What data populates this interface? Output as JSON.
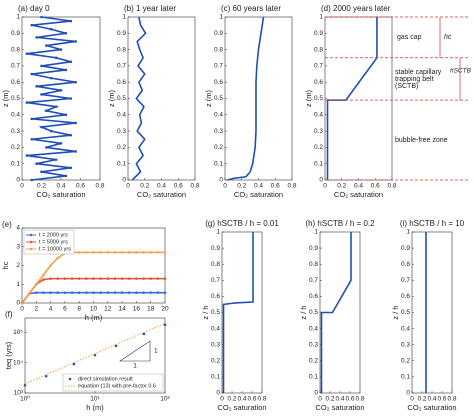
{
  "chart_data": [
    {
      "type": "line",
      "title": "(a) day 0",
      "xlabel": "CO₂ saturation",
      "ylabel": "z (m)",
      "xlim": [
        0,
        0.8
      ],
      "ylim": [
        0,
        1
      ],
      "xticks": [
        0,
        0.2,
        0.4,
        0.6,
        0.8
      ],
      "yticks": [
        0,
        0.1,
        0.2,
        0.3,
        0.4,
        0.5,
        0.6,
        0.7,
        0.8,
        0.9,
        1
      ],
      "series": [
        {
          "color": "#1f4fb5",
          "marker": "o",
          "x": [
            0.1,
            0.45,
            0.2,
            0.5,
            0.15,
            0.35,
            0.05,
            0.55,
            0.25,
            0.4,
            0.1,
            0.5,
            0.3,
            0.2,
            0.55,
            0.1,
            0.45,
            0.25,
            0.35,
            0.05,
            0.5,
            0.2,
            0.4,
            0.15,
            0.55,
            0.3,
            0.1,
            0.45,
            0.2,
            0.5,
            0.35,
            0.05,
            0.4,
            0.25,
            0.55,
            0.15,
            0.45,
            0.3,
            0.1,
            0.5,
            0.2
          ],
          "values": [
            0,
            0.025,
            0.05,
            0.075,
            0.1,
            0.125,
            0.15,
            0.175,
            0.2,
            0.225,
            0.25,
            0.275,
            0.3,
            0.325,
            0.35,
            0.375,
            0.4,
            0.425,
            0.45,
            0.475,
            0.5,
            0.525,
            0.55,
            0.575,
            0.6,
            0.625,
            0.65,
            0.675,
            0.7,
            0.725,
            0.75,
            0.775,
            0.8,
            0.825,
            0.85,
            0.875,
            0.9,
            0.925,
            0.95,
            0.975,
            1
          ]
        }
      ]
    },
    {
      "type": "line",
      "title": "(b) 1 year later",
      "xlabel": "CO₂ saturation",
      "ylabel": "z (m)",
      "xlim": [
        0,
        0.8
      ],
      "ylim": [
        0,
        1
      ],
      "xticks": [
        0,
        0.2,
        0.4,
        0.6,
        0.8
      ],
      "yticks": [
        0,
        0.1,
        0.2,
        0.3,
        0.4,
        0.5,
        0.6,
        0.7,
        0.8,
        0.9,
        1
      ],
      "series": [
        {
          "color": "#1f4fb5",
          "x": [
            0.05,
            0.15,
            0.1,
            0.18,
            0.13,
            0.2,
            0.11,
            0.16,
            0.14,
            0.19,
            0.1,
            0.17,
            0.13,
            0.2,
            0.12,
            0.18,
            0.14,
            0.11,
            0.21,
            0.15,
            0.13
          ],
          "values": [
            0,
            0.05,
            0.1,
            0.15,
            0.2,
            0.25,
            0.3,
            0.35,
            0.4,
            0.45,
            0.5,
            0.55,
            0.6,
            0.65,
            0.7,
            0.75,
            0.8,
            0.85,
            0.9,
            0.95,
            1
          ]
        }
      ]
    },
    {
      "type": "line",
      "title": "(c) 60 years later",
      "xlabel": "CO₂ saturation",
      "ylabel": "z (m)",
      "xlim": [
        0,
        0.8
      ],
      "ylim": [
        0,
        1
      ],
      "xticks": [
        0,
        0.2,
        0.4,
        0.6,
        0.8
      ],
      "yticks": [
        0,
        0.1,
        0.2,
        0.3,
        0.4,
        0.5,
        0.6,
        0.7,
        0.8,
        0.9,
        1
      ],
      "series": [
        {
          "color": "#1f4fb5",
          "x": [
            0.03,
            0.1,
            0.25,
            0.3,
            0.33,
            0.36,
            0.37,
            0.37,
            0.37,
            0.37,
            0.38,
            0.4,
            0.43,
            0.46
          ],
          "values": [
            0,
            0.01,
            0.02,
            0.05,
            0.1,
            0.2,
            0.3,
            0.4,
            0.5,
            0.6,
            0.7,
            0.8,
            0.9,
            1
          ]
        }
      ]
    },
    {
      "type": "line",
      "title": "(d) 2000 years later",
      "xlabel": "CO₂ saturation",
      "ylabel": "z (m)",
      "xlim": [
        0,
        0.8
      ],
      "ylim": [
        0,
        1
      ],
      "xticks": [
        0,
        0.2,
        0.4,
        0.6,
        0.8
      ],
      "yticks": [
        0,
        0.1,
        0.2,
        0.3,
        0.4,
        0.5,
        0.6,
        0.7,
        0.8,
        0.9,
        1
      ],
      "annotations": [
        "gas cap",
        "stable capillary",
        "trapping belt",
        "(SCTB)",
        "bubble-free zone",
        "hc",
        "hSCTB"
      ],
      "series": [
        {
          "color": "#1f4fb5",
          "x": [
            0.03,
            0.03,
            0.25,
            0.62,
            0.62
          ],
          "values": [
            0,
            0.49,
            0.49,
            0.75,
            1
          ]
        }
      ]
    },
    {
      "type": "line",
      "title": "(e)",
      "xlabel": "h (m)",
      "ylabel": "hc",
      "xlim": [
        0,
        20
      ],
      "ylim": [
        0,
        4
      ],
      "xticks": [
        0,
        2,
        4,
        6,
        8,
        10,
        12,
        14,
        16,
        18,
        20
      ],
      "yticks": [
        0,
        1,
        2,
        3,
        4
      ],
      "legend": "upper left",
      "series": [
        {
          "name": "t = 2000 yrs",
          "color": "#3b6fd6",
          "marker": "o",
          "x": [
            0,
            1,
            2,
            3,
            4,
            5,
            6,
            7,
            8,
            9,
            10,
            11,
            12,
            13,
            14,
            15,
            16,
            17,
            18,
            19,
            20
          ],
          "values": [
            0,
            0.5,
            0.55,
            0.55,
            0.55,
            0.55,
            0.55,
            0.55,
            0.55,
            0.55,
            0.55,
            0.55,
            0.55,
            0.55,
            0.55,
            0.55,
            0.55,
            0.55,
            0.55,
            0.55,
            0.55
          ]
        },
        {
          "name": "t = 5000 yrs",
          "color": "#e0533d",
          "marker": "o",
          "x": [
            0,
            1,
            2,
            3,
            4,
            5,
            6,
            7,
            8,
            9,
            10,
            11,
            12,
            13,
            14,
            15,
            16,
            17,
            18,
            19,
            20
          ],
          "values": [
            0,
            0.5,
            1,
            1.25,
            1.3,
            1.3,
            1.3,
            1.3,
            1.3,
            1.3,
            1.3,
            1.3,
            1.3,
            1.3,
            1.3,
            1.3,
            1.3,
            1.3,
            1.3,
            1.3,
            1.3
          ]
        },
        {
          "name": "t = 10000 yrs",
          "color": "#f5a04a",
          "marker": "o",
          "x": [
            0,
            1,
            2,
            3,
            4,
            5,
            6,
            7,
            8,
            9,
            10,
            11,
            12,
            13,
            14,
            15,
            16,
            17,
            18,
            19,
            20
          ],
          "values": [
            0,
            0.5,
            1,
            1.5,
            2,
            2.4,
            2.65,
            2.7,
            2.7,
            2.7,
            2.7,
            2.7,
            2.7,
            2.7,
            2.7,
            2.7,
            2.7,
            2.7,
            2.7,
            2.7,
            2.7
          ]
        }
      ]
    },
    {
      "type": "line",
      "title": "(f)",
      "xlabel": "h (m)",
      "ylabel": "teq (yrs)",
      "log_x": true,
      "log_y": true,
      "xlim": [
        1,
        100
      ],
      "ylim": [
        1000,
        300000
      ],
      "xticks": [
        {
          "value": 1,
          "label": "10⁰"
        },
        {
          "value": 10,
          "label": "10¹"
        },
        {
          "value": 100,
          "label": "10²"
        }
      ],
      "yticks": [
        {
          "value": 1000,
          "label": "10³"
        },
        {
          "value": 10000,
          "label": "10⁴"
        },
        {
          "value": 100000,
          "label": "10⁵"
        }
      ],
      "legend": "lower right",
      "annotations": [
        "1",
        "1"
      ],
      "series": [
        {
          "name": "direct simulation result",
          "color": "#1f4fb5",
          "marker": "o",
          "line": false,
          "x": [
            1,
            2,
            5,
            10,
            20,
            50,
            100
          ],
          "values": [
            1800,
            3600,
            9000,
            18000,
            36000,
            90000,
            180000
          ]
        },
        {
          "name": "equation (13) with pre-factor 0.6",
          "color": "#f5a04a",
          "line_style": "dotted",
          "x": [
            1,
            100
          ],
          "values": [
            2000,
            200000
          ]
        }
      ]
    },
    {
      "type": "line",
      "title": "(g) hSCTB / h = 0.01",
      "xlabel": "CO₂ saturation",
      "ylabel": "z / h",
      "xlim": [
        0,
        0.8
      ],
      "ylim": [
        0,
        1
      ],
      "xticks": [
        0,
        0.2,
        0.4,
        0.6,
        0.8
      ],
      "yticks": [
        0,
        0.1,
        0.2,
        0.3,
        0.4,
        0.5,
        0.6,
        0.7,
        0.8,
        0.9,
        1
      ],
      "series": [
        {
          "color": "#1f4fb5",
          "x": [
            0.03,
            0.03,
            0.15,
            0.3,
            0.62,
            0.62
          ],
          "values": [
            0,
            0.55,
            0.555,
            0.56,
            0.565,
            1
          ]
        }
      ]
    },
    {
      "type": "line",
      "title": "(h) hSCTB / h = 0.2",
      "xlabel": "CO₂ saturation",
      "ylabel": "z / h",
      "xlim": [
        0,
        0.8
      ],
      "ylim": [
        0,
        1
      ],
      "xticks": [
        0,
        0.2,
        0.4,
        0.6,
        0.8
      ],
      "yticks": [
        0,
        0.1,
        0.2,
        0.3,
        0.4,
        0.5,
        0.6,
        0.7,
        0.8,
        0.9,
        1
      ],
      "series": [
        {
          "color": "#1f4fb5",
          "x": [
            0.03,
            0.03,
            0.25,
            0.62,
            0.62
          ],
          "values": [
            0,
            0.5,
            0.5,
            0.7,
            1
          ]
        }
      ]
    },
    {
      "type": "line",
      "title": "(i) hSCTB / h = 10",
      "xlabel": "CO₂ saturation",
      "ylabel": "z / h",
      "xlim": [
        0,
        0.8
      ],
      "ylim": [
        0,
        1
      ],
      "xticks": [
        0,
        0.2,
        0.4,
        0.6,
        0.8
      ],
      "yticks": [
        0,
        0.1,
        0.2,
        0.3,
        0.4,
        0.5,
        0.6,
        0.7,
        0.8,
        0.9,
        1
      ],
      "series": [
        {
          "color": "#1f4fb5",
          "x": [
            0.28,
            0.28
          ],
          "values": [
            0,
            1
          ]
        }
      ]
    }
  ]
}
